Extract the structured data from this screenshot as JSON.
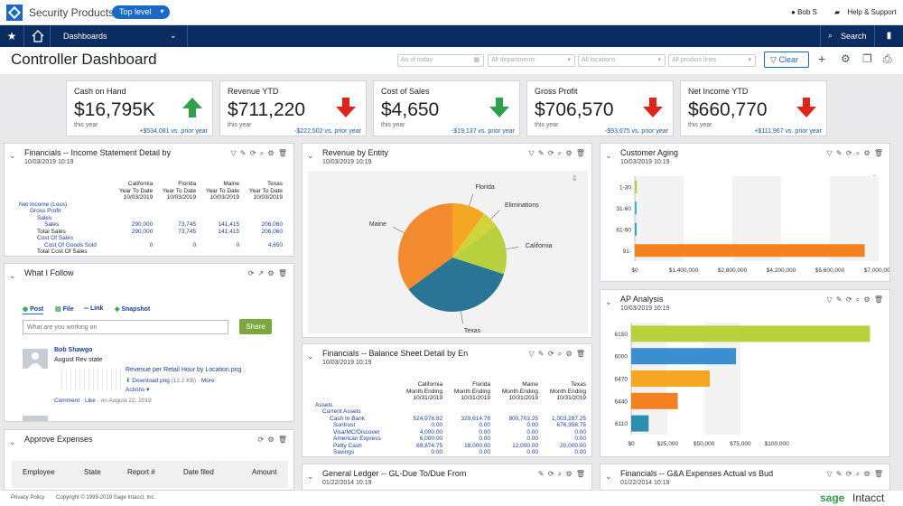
{
  "app": {
    "title": "Security Products",
    "level": "Top level",
    "user": "Bob S",
    "help": "Help & Support"
  },
  "nav": {
    "menu": "Dashboards",
    "search": "Search"
  },
  "dashboard": {
    "title": "Controller Dashboard",
    "filters": {
      "date": "As of today",
      "departments": "All departments",
      "locations": "All locations",
      "product_lines": "All product lines"
    },
    "clear": "Clear"
  },
  "kpis": [
    {
      "title": "Cash on Hand",
      "value": "$16,795K",
      "period": "this year",
      "delta": "+$534,081 vs. prior year",
      "trend": "up"
    },
    {
      "title": "Revenue YTD",
      "value": "$711,220",
      "period": "this year",
      "delta": "-$222,502 vs. prior year",
      "trend": "down"
    },
    {
      "title": "Cost of Sales",
      "value": "$4,650",
      "period": "this year",
      "delta": "-$19,137 vs. prior year",
      "trend": "up"
    },
    {
      "title": "Gross Profit",
      "value": "$706,570",
      "period": "this year",
      "delta": "-$93,675 vs. prior year",
      "trend": "down"
    },
    {
      "title": "Net Income YTD",
      "value": "$660,770",
      "period": "this year",
      "delta": "+$111,967 vs. prior year",
      "trend": "down"
    }
  ],
  "colors": {
    "up": "#2ea04a",
    "down": "#e0241a",
    "nav": "#0b2c5f",
    "accent": "#1a68c8"
  },
  "income": {
    "title": "Financials -- Income Statement Detail by",
    "date": "10/03/2019 10:19",
    "columns": [
      [
        "California",
        "Year To Date",
        "10/03/2019"
      ],
      [
        "Florida",
        "Year To Date",
        "10/03/2019"
      ],
      [
        "Maine",
        "Year To Date",
        "10/03/2019"
      ],
      [
        "Texas",
        "Year To Date",
        "10/03/2019"
      ]
    ],
    "rows": [
      [
        "Net Income (Loss)",
        "",
        "",
        "",
        ""
      ],
      [
        "Gross Profit",
        "",
        "",
        "",
        ""
      ],
      [
        "Sales",
        "",
        "",
        "",
        ""
      ],
      [
        "Sales",
        "290,000",
        "73,745",
        "141,415",
        "206,060"
      ],
      [
        "Total Sales",
        "290,000",
        "73,745",
        "141,415",
        "206,060"
      ],
      [
        "Cost Of Sales",
        "",
        "",
        "",
        ""
      ],
      [
        "Cost Of Goods Sold",
        "0",
        "0",
        "0",
        "4,650"
      ],
      [
        "Total Cost Of Sales",
        "",
        "",
        "",
        ""
      ]
    ]
  },
  "revenue": {
    "title": "Revenue by Entity",
    "date": "10/03/2019 10:19"
  },
  "aging": {
    "title": "Customer Aging",
    "date": "10/03/2019 10:19"
  },
  "follow": {
    "title": "What I Follow",
    "tabs": [
      "Post",
      "File",
      "Link",
      "Snapshot"
    ],
    "placeholder": "What are you working on",
    "share": "Share",
    "post": {
      "author": "Bob Shawgo",
      "text": "August Rev state",
      "file": "Revenue per Retail Hour by Location.png",
      "download": "Download png",
      "size": "(12.2 KB)",
      "more": "More",
      "actions": "Actions",
      "comment": "Comment",
      "like": "Like",
      "date": "on August 22, 2019"
    }
  },
  "balance": {
    "title": "Financials -- Balance Sheet Detail by En",
    "date": "10/03/2019 10:19",
    "columns": [
      [
        "California",
        "Month Ending",
        "10/31/2019"
      ],
      [
        "Florida",
        "Month Ending",
        "10/31/2019"
      ],
      [
        "Maine",
        "Month Ending",
        "10/31/2019"
      ],
      [
        "Texas",
        "Month Ending",
        "10/31/2019"
      ]
    ],
    "rows": [
      [
        "Assets",
        "",
        "",
        "",
        ""
      ],
      [
        "Current Assets",
        "",
        "",
        "",
        ""
      ],
      [
        "Cash In Bank",
        "524,978.82",
        "329,614.78",
        "800,703.25",
        "1,003,287.25"
      ],
      [
        "Suntrust",
        "0.00",
        "0.00",
        "0.00",
        "676,356.75"
      ],
      [
        "Visa/MC/Discover",
        "4,000.00",
        "0.00",
        "0.00",
        "0.00"
      ],
      [
        "American Express",
        "6,000.00",
        "0.00",
        "0.00",
        "0.00"
      ],
      [
        "Petty Cash",
        "69,874.75",
        "18,000.00",
        "12,000.00",
        "20,000.00"
      ],
      [
        "Savings",
        "0.00",
        "0.00",
        "0.00",
        "0.00"
      ]
    ]
  },
  "ap": {
    "title": "AP Analysis",
    "date": "10/03/2019 10:19"
  },
  "expenses": {
    "title": "Approve Expenses",
    "columns": [
      "Employee",
      "State",
      "Report #",
      "Date filed",
      "Amount"
    ]
  },
  "gl": {
    "title": "General Ledger -- GL-Due To/Due From",
    "date": "01/22/2014 10:19"
  },
  "ga": {
    "title": "Financials -- G&A Expenses Actual vs Bud",
    "date": "01/22/2014 10:19"
  },
  "footer": {
    "privacy": "Privacy Policy",
    "copyright": "Copyright © 1999-2019 Sage Intacct, Inc.",
    "brand_sage": "sage",
    "brand_intacct": "Intacct"
  },
  "chart_data": [
    {
      "type": "pie",
      "title": "Revenue by Entity",
      "categories": [
        "Florida",
        "Eliminations",
        "California",
        "Texas",
        "Maine"
      ],
      "values": [
        10,
        5,
        15,
        35,
        35
      ],
      "colors": [
        "#f5a623",
        "#cfd43a",
        "#b8d03e",
        "#2a7595",
        "#f28a30"
      ]
    },
    {
      "type": "bar",
      "title": "Customer Aging",
      "orientation": "horizontal",
      "categories": [
        "1-30",
        "31-60",
        "61-90",
        "91-"
      ],
      "values": [
        60000,
        40000,
        30000,
        6600000
      ],
      "xlim": [
        0,
        7000000
      ],
      "xticks": [
        "$0",
        "$1,400,000",
        "$2,800,000",
        "$4,200,000",
        "$5,600,000",
        "$7,000,000"
      ],
      "colors": [
        "#b8d03e",
        "#3ab8c8",
        "#3a9fd8",
        "#f5801f"
      ]
    },
    {
      "type": "bar",
      "title": "AP Analysis",
      "orientation": "horizontal",
      "categories": [
        "6150",
        "6000",
        "6470",
        "6440",
        "6110"
      ],
      "values": [
        164000,
        72000,
        54000,
        32000,
        12000
      ],
      "xlim": [
        0,
        165000
      ],
      "xticks": [
        "$0",
        "$25,000",
        "$50,000",
        "$75,000",
        "$100,000"
      ],
      "colors": [
        "#b8d03e",
        "#3a8fd0",
        "#f5a623",
        "#f5801f",
        "#2a8fb0"
      ]
    }
  ]
}
